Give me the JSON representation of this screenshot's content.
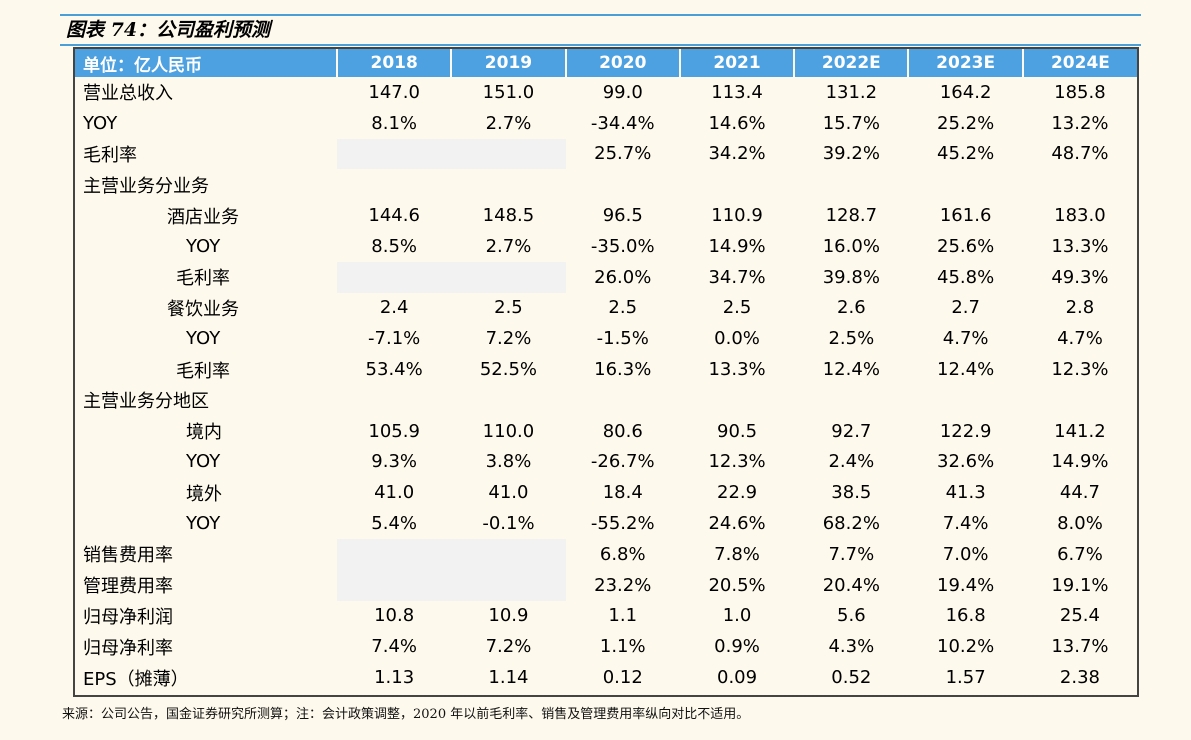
{
  "title": "图表 74：公司盈利预测",
  "header": [
    "单位：亿人民币",
    "2018",
    "2019",
    "2020",
    "2021",
    "2022E",
    "2023E",
    "2024E"
  ],
  "rows": [
    {
      "label": "营业总收入",
      "indent": "",
      "values": [
        "147.0",
        "151.0",
        "99.0",
        "113.4",
        "131.2",
        "164.2",
        "185.8"
      ]
    },
    {
      "label": "YOY",
      "indent": "",
      "values": [
        "8.1%",
        "2.7%",
        "-34.4%",
        "14.6%",
        "15.7%",
        "25.2%",
        "13.2%"
      ]
    },
    {
      "label": "毛利率",
      "indent": "",
      "values": [
        "",
        "",
        "25.7%",
        "34.2%",
        "39.2%",
        "45.2%",
        "48.7%"
      ],
      "blank": [
        0,
        1
      ]
    },
    {
      "label": "主营业务分业务",
      "indent": "",
      "values": [
        "",
        "",
        "",
        "",
        "",
        "",
        ""
      ]
    },
    {
      "label": "酒店业务",
      "indent": "sub1",
      "values": [
        "144.6",
        "148.5",
        "96.5",
        "110.9",
        "128.7",
        "161.6",
        "183.0"
      ]
    },
    {
      "label": "YOY",
      "indent": "sub2",
      "values": [
        "8.5%",
        "2.7%",
        "-35.0%",
        "14.9%",
        "16.0%",
        "25.6%",
        "13.3%"
      ]
    },
    {
      "label": "毛利率",
      "indent": "sub3",
      "values": [
        "",
        "",
        "26.0%",
        "34.7%",
        "39.8%",
        "45.8%",
        "49.3%"
      ],
      "blank": [
        0,
        1
      ]
    },
    {
      "label": "餐饮业务",
      "indent": "sub1",
      "values": [
        "2.4",
        "2.5",
        "2.5",
        "2.5",
        "2.6",
        "2.7",
        "2.8"
      ]
    },
    {
      "label": "YOY",
      "indent": "sub2",
      "values": [
        "-7.1%",
        "7.2%",
        "-1.5%",
        "0.0%",
        "2.5%",
        "4.7%",
        "4.7%"
      ]
    },
    {
      "label": "毛利率",
      "indent": "sub3",
      "values": [
        "53.4%",
        "52.5%",
        "16.3%",
        "13.3%",
        "12.4%",
        "12.4%",
        "12.3%"
      ]
    },
    {
      "label": "主营业务分地区",
      "indent": "",
      "values": [
        "",
        "",
        "",
        "",
        "",
        "",
        ""
      ]
    },
    {
      "label": "境内",
      "indent": "sub2",
      "values": [
        "105.9",
        "110.0",
        "80.6",
        "90.5",
        "92.7",
        "122.9",
        "141.2"
      ]
    },
    {
      "label": "YOY",
      "indent": "sub2",
      "values": [
        "9.3%",
        "3.8%",
        "-26.7%",
        "12.3%",
        "2.4%",
        "32.6%",
        "14.9%"
      ]
    },
    {
      "label": "境外",
      "indent": "sub2",
      "values": [
        "41.0",
        "41.0",
        "18.4",
        "22.9",
        "38.5",
        "41.3",
        "44.7"
      ]
    },
    {
      "label": "YOY",
      "indent": "sub2",
      "values": [
        "5.4%",
        "-0.1%",
        "-55.2%",
        "24.6%",
        "68.2%",
        "7.4%",
        "8.0%"
      ]
    },
    {
      "label": "销售费用率",
      "indent": "",
      "values": [
        "",
        "",
        "6.8%",
        "7.8%",
        "7.7%",
        "7.0%",
        "6.7%"
      ],
      "blank": [
        0,
        1
      ]
    },
    {
      "label": "管理费用率",
      "indent": "",
      "values": [
        "",
        "",
        "23.2%",
        "20.5%",
        "20.4%",
        "19.4%",
        "19.1%"
      ],
      "blank": [
        0,
        1
      ]
    },
    {
      "label": "归母净利润",
      "indent": "",
      "values": [
        "10.8",
        "10.9",
        "1.1",
        "1.0",
        "5.6",
        "16.8",
        "25.4"
      ]
    },
    {
      "label": "归母净利率",
      "indent": "",
      "values": [
        "7.4%",
        "7.2%",
        "1.1%",
        "0.9%",
        "4.3%",
        "10.2%",
        "13.7%"
      ]
    },
    {
      "label": "EPS（摊薄）",
      "indent": "",
      "values": [
        "1.13",
        "1.14",
        "0.12",
        "0.09",
        "0.52",
        "1.57",
        "2.38"
      ]
    }
  ],
  "footnote": "来源：公司公告，国金证券研究所测算；注：会计政策调整，2020 年以前毛利率、销售及管理费用率纵向对比不适用。"
}
